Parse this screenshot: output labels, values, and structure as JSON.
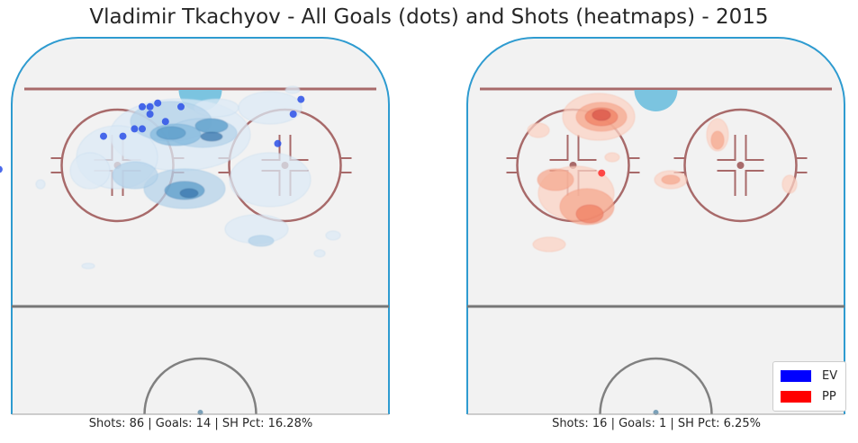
{
  "title": "Vladimir Tkachyov - All Goals (dots) and Shots (heatmaps) - 2015",
  "legend": {
    "items": [
      {
        "label": "EV",
        "color": "#0000ff"
      },
      {
        "label": "PP",
        "color": "#ff0000"
      }
    ]
  },
  "chart_data": [
    {
      "type": "heatmap",
      "situation": "EV",
      "caption": "Shots: 86 | Goals: 14 | SH Pct: 16.28%",
      "shots": 86,
      "goals_count": 14,
      "sh_pct": "16.28%",
      "colormap": "Blues",
      "goals": [
        [
          -52,
          55
        ],
        [
          -25,
          64
        ],
        [
          -20,
          64
        ],
        [
          -17,
          66
        ],
        [
          -15,
          72
        ],
        [
          -13,
          72
        ],
        [
          -15,
          66
        ],
        [
          -13,
          70
        ],
        [
          -11,
          73
        ],
        [
          -5,
          72
        ],
        [
          -9,
          68
        ],
        [
          20,
          62
        ],
        [
          24,
          70
        ],
        [
          26,
          74
        ]
      ],
      "shot_density_peaks": [
        [
          -20,
          66
        ],
        [
          -11,
          68
        ],
        [
          -18,
          62
        ],
        [
          -25,
          54
        ],
        [
          -3,
          70
        ],
        [
          22,
          64
        ],
        [
          -5,
          52
        ]
      ]
    },
    {
      "type": "heatmap",
      "situation": "PP",
      "caption": "Shots: 16 | Goals: 1 | SH Pct: 6.25%",
      "shots": 16,
      "goals_count": 1,
      "sh_pct": "6.25%",
      "colormap": "Reds",
      "goals": [
        [
          -14,
          54
        ]
      ],
      "shot_density_peaks": [
        [
          -14,
          74
        ],
        [
          -14,
          58
        ],
        [
          -28,
          60
        ],
        [
          -4,
          62
        ],
        [
          40,
          72
        ],
        [
          40,
          60
        ]
      ]
    }
  ],
  "colors": {
    "ice": "#f2f2f2",
    "boards": "#2e9bd0",
    "red_lines": "#a86a6a",
    "blue_line": "#777777",
    "crease": "#7bc4e0"
  }
}
